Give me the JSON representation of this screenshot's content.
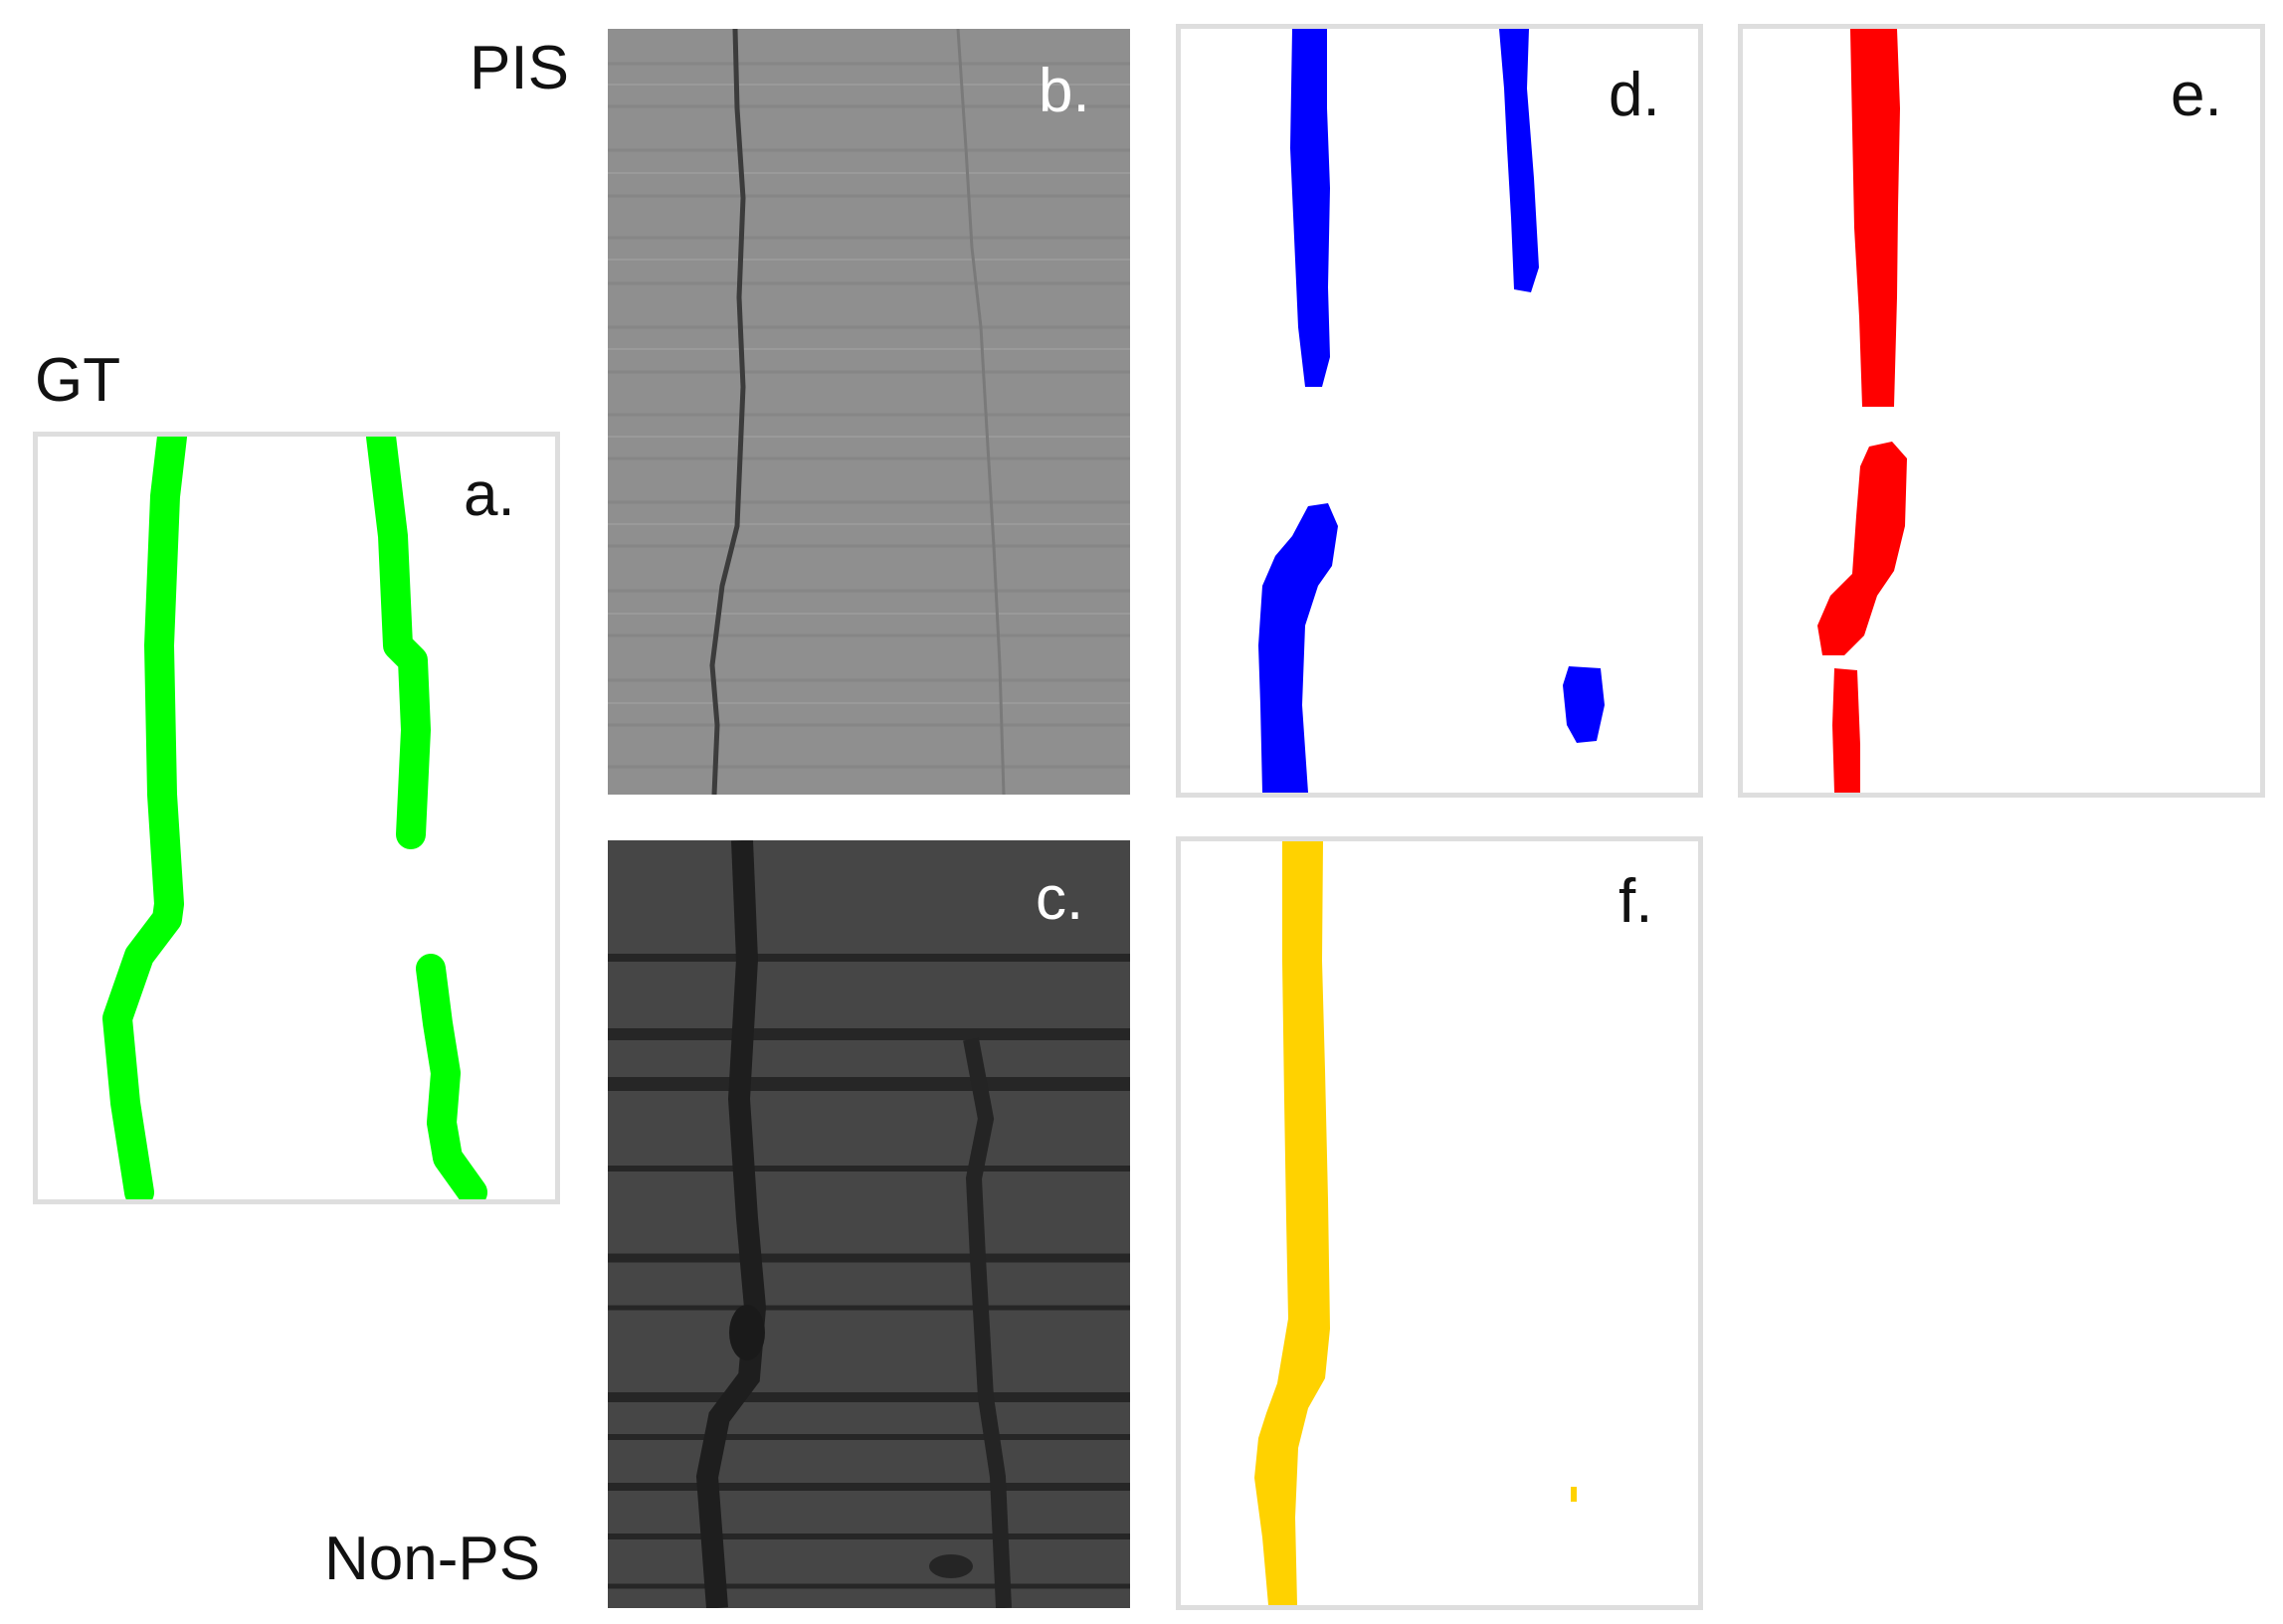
{
  "row_labels": {
    "gt": "GT",
    "pis": "PIS",
    "non_ps": "Non-PS"
  },
  "panels": {
    "a": {
      "tag": "a.",
      "color": "#00ff00"
    },
    "b": {
      "tag": "b."
    },
    "c": {
      "tag": "c."
    },
    "d": {
      "tag": "d.",
      "color": "#0000ff"
    },
    "e": {
      "tag": "e.",
      "color": "#ff0000"
    },
    "f": {
      "tag": "f.",
      "color": "#ffd200"
    }
  },
  "colors": {
    "frame": "#dedede",
    "image_b_background": "#8f8f8f",
    "image_c_background": "#464646"
  }
}
